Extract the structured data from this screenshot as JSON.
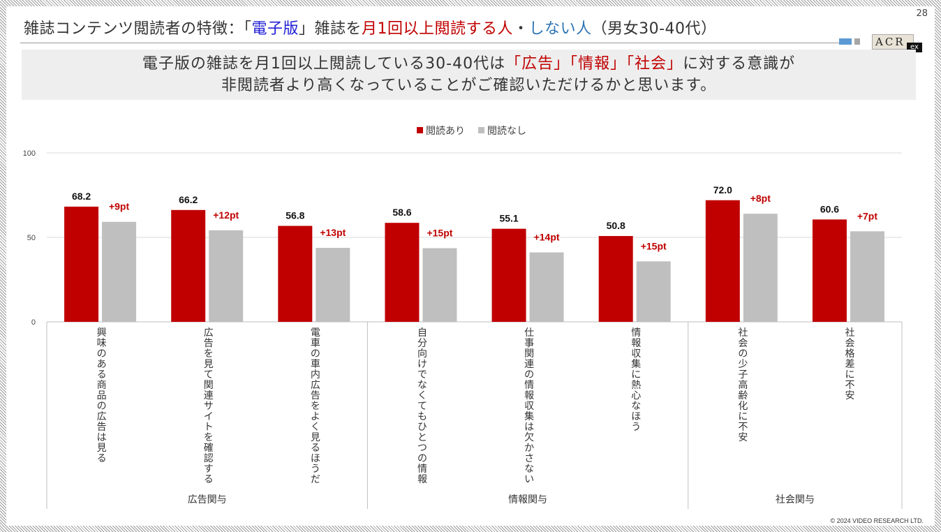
{
  "page_number": "28",
  "title": {
    "part1": "雑誌コンテンツ閲読者の特徴：「",
    "part2": "電子版",
    "part3": "」雑誌を",
    "part4": "月1回以上閲読する人",
    "part5": "・",
    "part6": "しない人",
    "part7": "（男女30-40代）"
  },
  "logo": {
    "text": "ACR",
    "suffix": "ex"
  },
  "headline": {
    "line1_a": "電子版の雑誌を月1回以上閲読している30-40代は",
    "line1_b": "「広告」「情報」「社会」",
    "line1_c": "に対する意識が",
    "line2": "非閲読者より高くなっていることがご確認いただけるかと思います。"
  },
  "copyright": "© 2024 VIDEO RESEARCH LTD.",
  "colors": {
    "accent_red": "#c00000",
    "gray_bar": "#bfbfbf",
    "headline_red": "#c00000",
    "title_blue": "#1f1fd6"
  },
  "chart_data": {
    "type": "bar",
    "legend": [
      "閲読あり",
      "閲読なし"
    ],
    "legend_position": "top-center",
    "ylim": [
      0,
      100
    ],
    "yticks": [
      0,
      50,
      100
    ],
    "grid": true,
    "categories": [
      "興味のある商品の広告は見る",
      "広告を見て関連サイトを確認する",
      "電車の車内広告をよく見るほうだ",
      "自分向けでなくてもひとつの情報",
      "仕事関連の情報収集は欠かさない",
      "情報収集に熱心なほう",
      "社会の少子高齢化に不安",
      "社会格差に不安"
    ],
    "groups": [
      {
        "label": "広告関与",
        "count": 3
      },
      {
        "label": "情報関与",
        "count": 3
      },
      {
        "label": "社会関与",
        "count": 2
      }
    ],
    "series": [
      {
        "name": "閲読あり",
        "values": [
          68.2,
          66.2,
          56.8,
          58.6,
          55.1,
          50.8,
          72.0,
          60.6
        ]
      },
      {
        "name": "閲読なし",
        "values": [
          59.2,
          54.2,
          43.8,
          43.6,
          41.1,
          35.8,
          64.0,
          53.6
        ]
      }
    ],
    "value_labels": [
      "68.2",
      "66.2",
      "56.8",
      "58.6",
      "55.1",
      "50.8",
      "72.0",
      "60.6"
    ],
    "diff_labels": [
      "+9pt",
      "+12pt",
      "+13pt",
      "+15pt",
      "+14pt",
      "+15pt",
      "+8pt",
      "+7pt"
    ]
  }
}
